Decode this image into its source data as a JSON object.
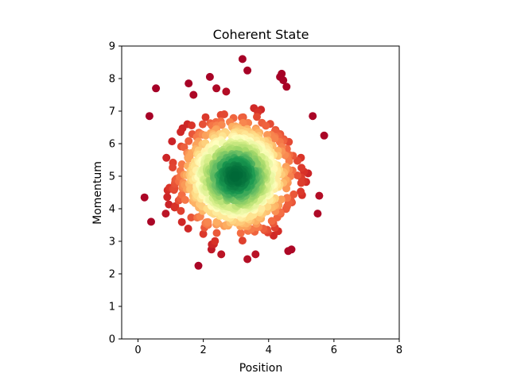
{
  "chart_data": {
    "type": "scatter",
    "title": "Coherent State",
    "xlabel": "Position",
    "ylabel": "Momentum",
    "xlim": [
      -0.5,
      8
    ],
    "ylim": [
      0,
      9
    ],
    "xticks": [
      "0",
      "2",
      "4",
      "6",
      "8"
    ],
    "yticks": [
      "0",
      "1",
      "2",
      "3",
      "4",
      "5",
      "6",
      "7",
      "8",
      "9"
    ],
    "grid": false,
    "colormap": "RdYlGn (low density = red, high density = green)",
    "colors": {
      "low_density": "#a50026",
      "mid_density": "#fee08b",
      "high_density": "#006837"
    },
    "distribution": {
      "center": [
        3.0,
        5.0
      ],
      "spread_sigma": [
        0.9,
        0.9
      ],
      "count": 1000
    },
    "outlier_points": [
      [
        3.2,
        8.6
      ],
      [
        3.35,
        8.25
      ],
      [
        4.4,
        8.15
      ],
      [
        4.45,
        7.95
      ],
      [
        4.55,
        7.75
      ],
      [
        0.55,
        7.7
      ],
      [
        1.55,
        7.85
      ],
      [
        2.2,
        8.05
      ],
      [
        1.7,
        7.5
      ],
      [
        2.4,
        7.7
      ],
      [
        2.7,
        7.6
      ],
      [
        0.35,
        6.85
      ],
      [
        5.35,
        6.85
      ],
      [
        5.7,
        6.25
      ],
      [
        0.2,
        4.35
      ],
      [
        0.4,
        3.6
      ],
      [
        0.85,
        3.85
      ],
      [
        5.55,
        4.4
      ],
      [
        5.5,
        3.85
      ],
      [
        1.85,
        2.25
      ],
      [
        2.25,
        2.75
      ],
      [
        2.55,
        2.6
      ],
      [
        3.35,
        2.45
      ],
      [
        3.6,
        2.6
      ],
      [
        4.6,
        2.7
      ],
      [
        4.7,
        2.75
      ],
      [
        4.35,
        8.05
      ]
    ]
  }
}
